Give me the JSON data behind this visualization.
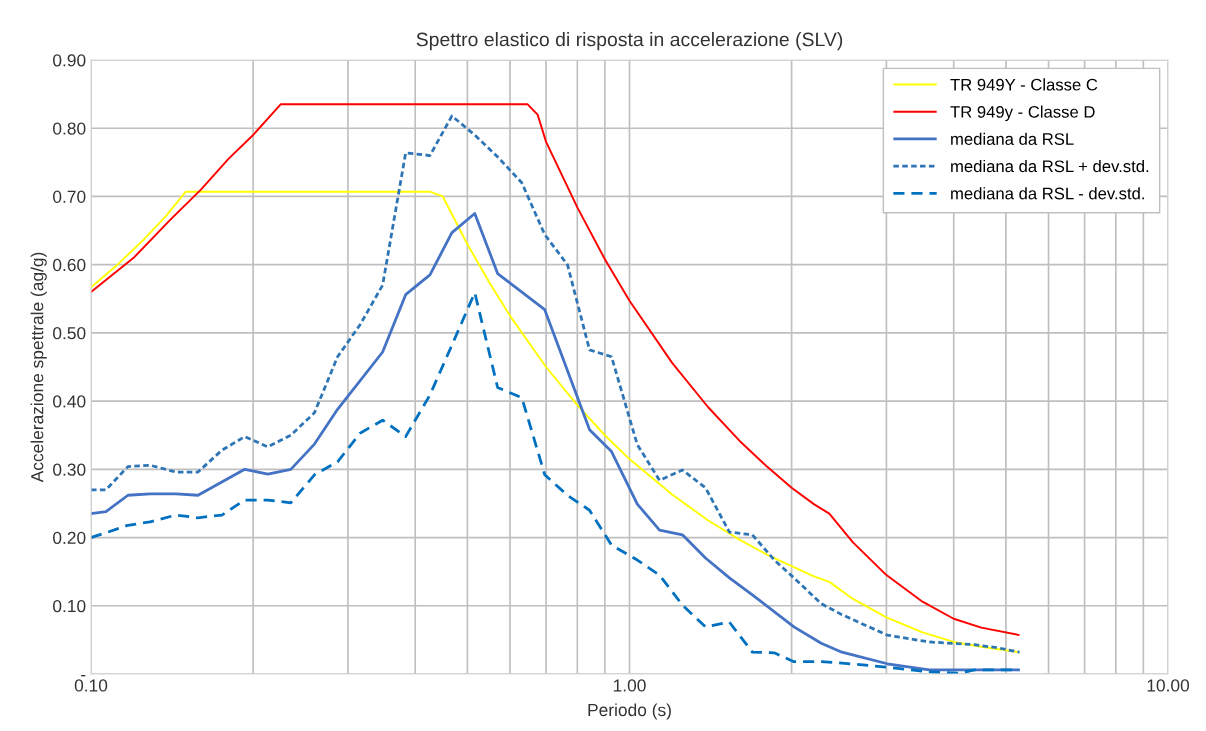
{
  "chart_data": {
    "type": "line",
    "title": "Spettro elastico di risposta in accelerazione (SLV)",
    "xlabel": "Periodo (s)",
    "ylabel": "Accelerazione spettrale (ag/g)",
    "log": "x",
    "grid": true,
    "legend": "top right",
    "marker": "none",
    "xlim": [
      0.1,
      10
    ],
    "ylim": [
      0,
      0.9
    ],
    "xticks": [
      {
        "value": 0.1,
        "label": "0.10"
      },
      {
        "value": 0.2,
        "label": null
      },
      {
        "value": 0.3,
        "label": null
      },
      {
        "value": 0.4,
        "label": null
      },
      {
        "value": 0.5,
        "label": null
      },
      {
        "value": 0.6,
        "label": null
      },
      {
        "value": 0.7,
        "label": null
      },
      {
        "value": 0.8,
        "label": null
      },
      {
        "value": 0.9,
        "label": null
      },
      {
        "value": 1,
        "label": "1.00"
      },
      {
        "value": 2,
        "label": null
      },
      {
        "value": 3,
        "label": null
      },
      {
        "value": 4,
        "label": null
      },
      {
        "value": 5,
        "label": null
      },
      {
        "value": 6,
        "label": null
      },
      {
        "value": 7,
        "label": null
      },
      {
        "value": 8,
        "label": null
      },
      {
        "value": 9,
        "label": null
      },
      {
        "value": 10,
        "label": "10.00"
      }
    ],
    "yticks": [
      {
        "value": 0,
        "label": "-"
      },
      {
        "value": 0.1,
        "label": "0.10"
      },
      {
        "value": 0.2,
        "label": "0.20"
      },
      {
        "value": 0.3,
        "label": "0.30"
      },
      {
        "value": 0.4,
        "label": "0.40"
      },
      {
        "value": 0.5,
        "label": "0.50"
      },
      {
        "value": 0.6,
        "label": "0.60"
      },
      {
        "value": 0.7,
        "label": "0.70"
      },
      {
        "value": 0.8,
        "label": "0.80"
      },
      {
        "value": 0.9,
        "label": "0.90"
      }
    ],
    "series": [
      {
        "name": "TR 949Y - Classe C",
        "color": "#ffff00",
        "line_style": "solid",
        "x": [
          0.1,
          0.112,
          0.125,
          0.138,
          0.15,
          0.426,
          0.45,
          0.5,
          0.55,
          0.6,
          0.7,
          0.8,
          0.9,
          1.0,
          1.2,
          1.4,
          1.6,
          1.8,
          2.0,
          2.2,
          2.35,
          2.6,
          3.0,
          3.5,
          4.0,
          4.5,
          5.3
        ],
        "values": [
          0.567,
          0.6,
          0.636,
          0.672,
          0.707,
          0.707,
          0.7,
          0.63,
          0.573,
          0.525,
          0.45,
          0.394,
          0.35,
          0.315,
          0.263,
          0.225,
          0.197,
          0.175,
          0.158,
          0.143,
          0.135,
          0.11,
          0.083,
          0.061,
          0.047,
          0.04,
          0.032
        ]
      },
      {
        "name": "TR 949y - Classe D",
        "color": "#ff0000",
        "line_style": "solid",
        "x": [
          0.1,
          0.12,
          0.14,
          0.16,
          0.18,
          0.2,
          0.225,
          0.647,
          0.675,
          0.7,
          0.8,
          0.9,
          1.0,
          1.2,
          1.4,
          1.6,
          1.8,
          2.0,
          2.2,
          2.35,
          2.6,
          3.0,
          3.5,
          4.0,
          4.5,
          5.3
        ],
        "values": [
          0.56,
          0.61,
          0.665,
          0.71,
          0.755,
          0.79,
          0.835,
          0.835,
          0.82,
          0.78,
          0.684,
          0.608,
          0.547,
          0.456,
          0.391,
          0.342,
          0.304,
          0.273,
          0.249,
          0.235,
          0.193,
          0.145,
          0.106,
          0.081,
          0.068,
          0.057
        ]
      },
      {
        "name": "mediana da RSL",
        "color": "#4472c4",
        "line_style": "solid",
        "x": [
          0.1,
          0.1066,
          0.1171,
          0.1287,
          0.1438,
          0.158,
          0.193,
          0.213,
          0.235,
          0.26,
          0.287,
          0.348,
          0.384,
          0.426,
          0.468,
          0.516,
          0.569,
          0.696,
          0.843,
          0.926,
          1.034,
          1.137,
          1.254,
          1.384,
          1.533,
          1.691,
          2.02,
          2.27,
          2.48,
          3.01,
          3.6,
          5.3
        ],
        "values": [
          0.235,
          0.238,
          0.262,
          0.264,
          0.264,
          0.262,
          0.3,
          0.293,
          0.3,
          0.337,
          0.388,
          0.472,
          0.556,
          0.585,
          0.647,
          0.675,
          0.587,
          0.534,
          0.358,
          0.326,
          0.249,
          0.211,
          0.204,
          0.17,
          0.141,
          0.116,
          0.069,
          0.045,
          0.032,
          0.015,
          0.006,
          0.006
        ]
      },
      {
        "name": "mediana da RSL + dev.std.",
        "color": "#2e75b6",
        "line_style": "dotted",
        "x": [
          0.1,
          0.1066,
          0.1171,
          0.1287,
          0.1438,
          0.158,
          0.175,
          0.193,
          0.213,
          0.235,
          0.26,
          0.287,
          0.316,
          0.348,
          0.384,
          0.426,
          0.468,
          0.516,
          0.569,
          0.631,
          0.696,
          0.767,
          0.843,
          0.926,
          1.034,
          1.137,
          1.254,
          1.384,
          1.533,
          1.691,
          1.858,
          2.02,
          2.27,
          2.48,
          3.01,
          3.6,
          4.37,
          4.86,
          5.3
        ],
        "values": [
          0.27,
          0.27,
          0.304,
          0.306,
          0.296,
          0.296,
          0.328,
          0.348,
          0.333,
          0.35,
          0.383,
          0.465,
          0.512,
          0.57,
          0.764,
          0.76,
          0.818,
          0.79,
          0.758,
          0.72,
          0.644,
          0.6,
          0.475,
          0.465,
          0.336,
          0.284,
          0.299,
          0.273,
          0.208,
          0.204,
          0.167,
          0.141,
          0.103,
          0.087,
          0.057,
          0.047,
          0.043,
          0.038,
          0.032
        ]
      },
      {
        "name": "mediana da RSL - dev.std.",
        "color": "#0070c0",
        "line_style": "dashed",
        "x": [
          0.1,
          0.1066,
          0.1171,
          0.1287,
          0.1438,
          0.158,
          0.175,
          0.193,
          0.213,
          0.235,
          0.26,
          0.287,
          0.316,
          0.348,
          0.384,
          0.426,
          0.468,
          0.516,
          0.569,
          0.631,
          0.696,
          0.767,
          0.843,
          0.926,
          1.034,
          1.137,
          1.254,
          1.384,
          1.533,
          1.691,
          1.858,
          2.02,
          2.27,
          2.48,
          3.01,
          3.6,
          4.1,
          4.37,
          5.3
        ],
        "values": [
          0.2,
          0.207,
          0.218,
          0.223,
          0.233,
          0.229,
          0.233,
          0.255,
          0.255,
          0.251,
          0.292,
          0.311,
          0.353,
          0.372,
          0.348,
          0.409,
          0.482,
          0.559,
          0.42,
          0.405,
          0.292,
          0.262,
          0.24,
          0.189,
          0.167,
          0.145,
          0.101,
          0.069,
          0.076,
          0.032,
          0.031,
          0.018,
          0.018,
          0.016,
          0.01,
          0.003,
          0.001,
          0.006,
          0.006
        ]
      }
    ]
  }
}
